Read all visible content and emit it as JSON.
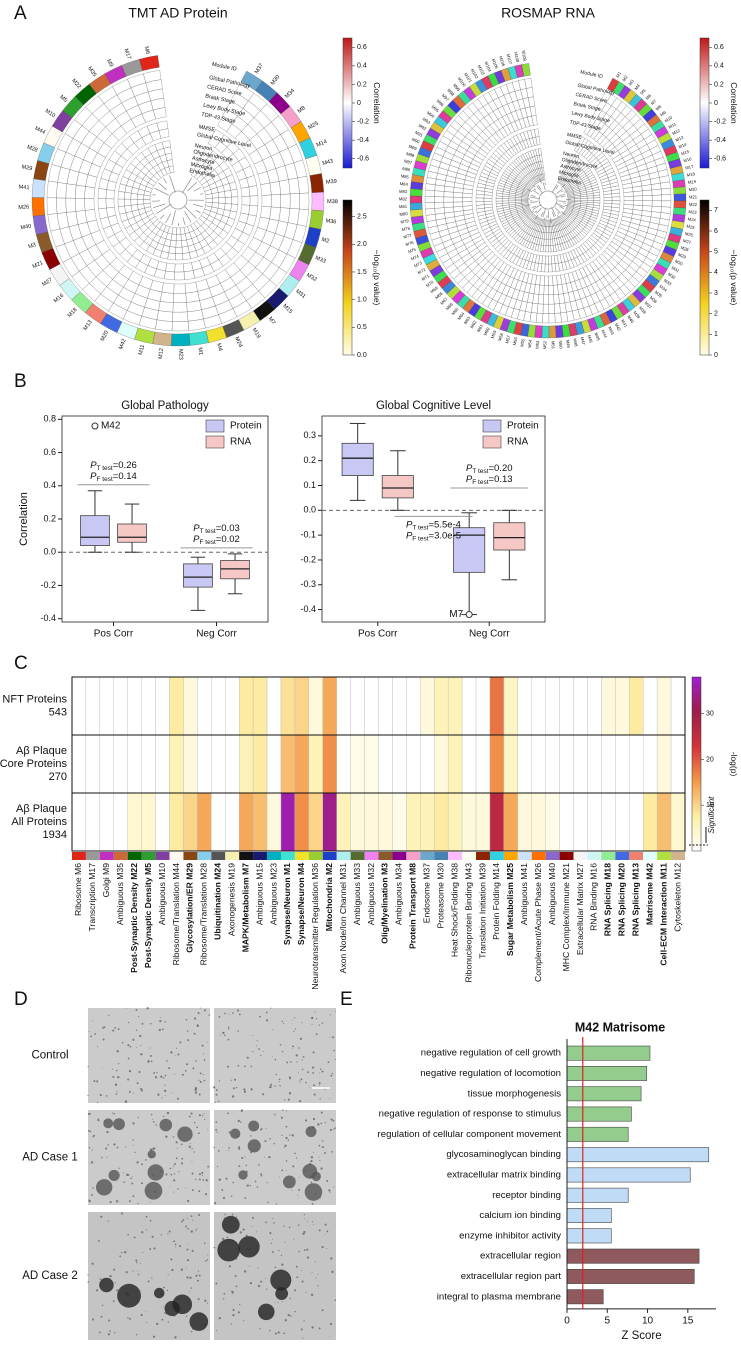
{
  "panel_labels": [
    "A",
    "B",
    "C",
    "D",
    "E"
  ],
  "chart_data": [
    {
      "type": "circular",
      "title": "TMT AD Protein",
      "tracks": [
        "Module ID",
        "Global Pathology",
        "CERAD Score",
        "Braak Stage",
        "Lewy Body Stage",
        "TDP-43 Stage",
        "MMSE",
        "Global Cognitive Level",
        "Neuron",
        "Oligodendrocyte",
        "Astrocyte",
        "Microglia",
        "Endothelia"
      ],
      "modules": [
        "M37",
        "M30",
        "M34",
        "M8",
        "M25",
        "M14",
        "M43",
        "M39",
        "M38",
        "M36",
        "M2",
        "M33",
        "M32",
        "M31",
        "M15",
        "M7",
        "M19",
        "M24",
        "M4",
        "M1",
        "M23",
        "M12",
        "M11",
        "M42",
        "M20",
        "M13",
        "M18",
        "M16",
        "M27",
        "M21",
        "M3",
        "M40",
        "M26",
        "M41",
        "M29",
        "M28",
        "M44",
        "M10",
        "M5",
        "M22",
        "M35",
        "M9",
        "M17",
        "M6"
      ],
      "colors": [
        "#6ca6cd",
        "#4682b4",
        "#8b008b",
        "#f5a0c8",
        "#ffa500",
        "#30d0e0",
        "#fffff0",
        "#8b2500",
        "#ffbbff",
        "#9acd32",
        "#1e40c8",
        "#556b2f",
        "#ee82ee",
        "#afeeee",
        "#191970",
        "#111111",
        "#f5f0b0",
        "#555555",
        "#f2e02a",
        "#40e0d0",
        "#00b0c0",
        "#d2b48c",
        "#b0e040",
        "#e0ffff",
        "#4169e1",
        "#f08070",
        "#90ee90",
        "#d0f5f5",
        "#f4f4f4",
        "#8b0000",
        "#8b5a2b",
        "#8968cd",
        "#ff7000",
        "#cae1ff",
        "#8b4513",
        "#87ceeb",
        "#fffaf0",
        "#8040a0",
        "#2e9e2e",
        "#006400",
        "#cd6839",
        "#c030c0",
        "#999999",
        "#e0261b"
      ],
      "colorbars": [
        {
          "label": "Correlation",
          "range": [
            -0.7,
            0.7
          ],
          "ticks": [
            0.6,
            0.4,
            0.2,
            0,
            -0.2,
            -0.4,
            -0.6
          ],
          "colors": [
            "#1a1ad0",
            "#ffffff",
            "#c01818"
          ]
        },
        {
          "label": "−log₁₀(p value)",
          "range": [
            0,
            2.8
          ],
          "ticks": [
            {
              "value": 0,
              "label": "0.0"
            },
            0.5,
            {
              "value": 1,
              "label": "1.0"
            },
            1.5,
            {
              "value": 2,
              "label": "2.0"
            },
            2.5
          ],
          "colors": [
            "#fffde8",
            "#f2d21c",
            "#c8461a",
            "#000000"
          ]
        }
      ]
    },
    {
      "type": "circular",
      "title": "ROSMAP RNA",
      "tracks": [
        "Module ID",
        "Global Pathology",
        "CERAD Score",
        "Braak Stage",
        "Lewy Body Stage",
        "TDP-43 Stage",
        "MMSE",
        "Global Cognitive Level",
        "Neuron",
        "Oligodendrocyte",
        "Astrocyte",
        "Microglia",
        "Endothelia"
      ],
      "modules": [
        "M1",
        "M2",
        "M3",
        "M4",
        "M5",
        "M6",
        "M7",
        "M8",
        "M9",
        "M10",
        "M11",
        "M12",
        "M13",
        "M14",
        "M15",
        "M16",
        "M17",
        "M18",
        "M19",
        "M20",
        "M21",
        "M22",
        "M23",
        "M24",
        "M25",
        "M26",
        "M27",
        "M28",
        "M29",
        "M30",
        "M31",
        "M32",
        "M33",
        "M34",
        "M35",
        "M36",
        "M37",
        "M38",
        "M39",
        "M40",
        "M41",
        "M42",
        "M43",
        "M44",
        "M45",
        "M46",
        "M47",
        "M48",
        "M49",
        "M50",
        "M51",
        "M52",
        "M53",
        "M54",
        "M55",
        "M56",
        "M57",
        "M58",
        "M59",
        "M60",
        "M61",
        "M62",
        "M63",
        "M64",
        "M65",
        "M66",
        "M67",
        "M68",
        "M69",
        "M70",
        "M71",
        "M72",
        "M73",
        "M74",
        "M75",
        "M76",
        "M77",
        "M78",
        "M79",
        "M80",
        "M81",
        "M82",
        "M83",
        "M84",
        "M85",
        "M86",
        "M87",
        "M88",
        "M89",
        "M90",
        "M91",
        "M92",
        "M93",
        "M94",
        "M95",
        "M96",
        "M97",
        "M98",
        "M99",
        "M100",
        "M101",
        "M102",
        "M103",
        "M104",
        "M105",
        "M106",
        "M107",
        "M108",
        "M109"
      ],
      "colorbars": [
        {
          "label": "Correlation",
          "range": [
            -0.7,
            0.7
          ],
          "ticks": [
            0.6,
            0.4,
            0.2,
            0,
            -0.2,
            -0.4,
            -0.6
          ],
          "colors": [
            "#1a1ad0",
            "#ffffff",
            "#c01818"
          ]
        },
        {
          "label": "−log₁₀(p value)",
          "range": [
            0,
            7.5
          ],
          "ticks": [
            7,
            6,
            5,
            4,
            3,
            2,
            1,
            0
          ],
          "colors": [
            "#fffde8",
            "#f2d21c",
            "#c8461a",
            "#000000"
          ]
        }
      ]
    },
    {
      "type": "box",
      "title": "Global Pathology",
      "ylabel": "Correlation",
      "categories": [
        "Pos Corr",
        "Neg Corr"
      ],
      "ylim": [
        -0.42,
        0.82
      ],
      "yticks": [
        -0.4,
        -0.2,
        {
          "value": 0,
          "label": "0.0"
        },
        0.2,
        0.4,
        0.6,
        0.8
      ],
      "reference_line": 0,
      "legend": "upper right",
      "series": [
        {
          "name": "Protein",
          "color": "#c9c7f3",
          "q1": [
            0.04,
            -0.21
          ],
          "median": [
            0.09,
            -0.15
          ],
          "q3": [
            0.22,
            -0.07
          ],
          "whislo": [
            0.0,
            -0.35
          ],
          "whishi": [
            0.37,
            -0.03
          ],
          "labeled_points": [
            {
              "label": "M42",
              "value": 0.76
            },
            null
          ]
        },
        {
          "name": "RNA",
          "color": "#f5c8c6",
          "q1": [
            0.06,
            -0.16
          ],
          "median": [
            0.09,
            -0.1
          ],
          "q3": [
            0.17,
            -0.05
          ],
          "whislo": [
            0.0,
            -0.25
          ],
          "whishi": [
            0.29,
            -0.01
          ],
          "labeled_points": [
            null,
            null
          ]
        }
      ],
      "p_values": [
        [
          {
            "p": "P",
            "sub": "T test",
            "text": "=0.26"
          },
          {
            "p": "P",
            "sub": "F test",
            "text": "=0.14"
          }
        ],
        [
          {
            "p": "P",
            "sub": "T test",
            "text": "=0.03"
          },
          {
            "p": "P",
            "sub": "F test",
            "text": "=0.02"
          }
        ]
      ]
    },
    {
      "type": "box",
      "title": "Global Cognitive Level",
      "categories": [
        "Pos Corr",
        "Neg Corr"
      ],
      "ylim": [
        -0.45,
        0.38
      ],
      "yticks": [
        -0.4,
        -0.3,
        -0.2,
        -0.1,
        {
          "value": 0,
          "label": "0.0"
        },
        0.1,
        0.2,
        0.3
      ],
      "reference_line": 0,
      "legend": "upper right",
      "series": [
        {
          "name": "Protein",
          "color": "#c9c7f3",
          "q1": [
            0.14,
            -0.25
          ],
          "median": [
            0.21,
            -0.1
          ],
          "q3": [
            0.27,
            -0.07
          ],
          "whislo": [
            0.04,
            -0.42
          ],
          "whishi": [
            0.35,
            -0.01
          ],
          "labeled_points": [
            null,
            {
              "label": "M7",
              "value": -0.42
            }
          ]
        },
        {
          "name": "RNA",
          "color": "#f5c8c6",
          "q1": [
            0.05,
            -0.16
          ],
          "median": [
            0.09,
            -0.11
          ],
          "q3": [
            0.14,
            -0.05
          ],
          "whislo": [
            0.0,
            -0.28
          ],
          "whishi": [
            0.24,
            0.0
          ],
          "labeled_points": [
            null,
            null
          ]
        }
      ],
      "p_values": [
        [
          {
            "p": "P",
            "sub": "T test",
            "text": "=0.20"
          },
          {
            "p": "P",
            "sub": "F test",
            "text": "=0.13"
          }
        ],
        [
          {
            "p": "P",
            "sub": "T test",
            "text": "=5.5e-4"
          },
          {
            "p": "P",
            "sub": "F test",
            "text": "=3.0e-5"
          }
        ]
      ]
    },
    {
      "type": "heatmap",
      "rows": [
        [
          "NFT Proteins",
          "543"
        ],
        [
          "Aβ Plaque",
          "Core Proteins",
          "270"
        ],
        [
          "Aβ Plaque",
          "All Proteins",
          "1934"
        ]
      ],
      "categories": [
        "Ribosome M6",
        "Transcription M17",
        "Golgi M9",
        "Ambiguous M35",
        "Post-Synaptic Density M22",
        "Post-Synaptic Density M5",
        "Ambiguous M10",
        "Ribosome/Translation M44",
        "Glycosylation/ER M29",
        "Ribosome/Translation M28",
        "Ubiquitination M24",
        "Axonogenesis M19",
        "MAPK/Metabolism M7",
        "Ambiguous M15",
        "Ambiguous M23",
        "Synapse/Neuron M1",
        "Synapse/Neuron M4",
        "Neurotransmitter Regulation M36",
        "Mitochondria M2",
        "Axon Node/Ion Channel M31",
        "Ambiguous M33",
        "Ambiguous M32",
        "Olig/Myelination M3",
        "Ambiguous M34",
        "Protein Transport M8",
        "Endosome M37",
        "Proteasome M30",
        "Heat Shock/Folding M38",
        "Ribonucleoprotein Binding M43",
        "Translation Initiation M39",
        "Protein Folding M14",
        "Sugar Metabolism M25",
        "Ambiguous M41",
        "Complement/Acute Phase M26",
        "Ambiguous M40",
        "MHC Complex/Immune M21",
        "Extracellular Matrix M27",
        "RNA Binding M16",
        "RNA Splicing M18",
        "RNA Splicing M20",
        "RNA Splicing M13",
        "Matrisome M42",
        "Cell-ECM Interaction M11",
        "Cytoskeleton M12"
      ],
      "label_styles": [
        "normal",
        "normal",
        "normal",
        "normal",
        "red",
        "red",
        "normal",
        "normal",
        "bold",
        "normal",
        "bold",
        "normal",
        "red",
        "normal",
        "normal",
        "bold",
        "bold",
        "normal",
        "bold",
        "normal",
        "normal",
        "normal",
        "bold",
        "normal",
        "bold",
        "normal",
        "normal",
        "normal",
        "normal",
        "normal",
        "normal",
        "bold",
        "normal",
        "normal",
        "normal",
        "normal",
        "normal",
        "normal",
        "bold",
        "bold",
        "bold",
        "red",
        "red",
        "normal"
      ],
      "column_colors": [
        "#e0261b",
        "#999999",
        "#c030c0",
        "#cd6839",
        "#006400",
        "#2e9e2e",
        "#8040a0",
        "#fffaf0",
        "#8b4513",
        "#87ceeb",
        "#555555",
        "#f5f0b0",
        "#111111",
        "#191970",
        "#00b0c0",
        "#40e0d0",
        "#f2e02a",
        "#9acd32",
        "#1e40c8",
        "#afeeee",
        "#556b2f",
        "#ee82ee",
        "#8b5a2b",
        "#8b008b",
        "#f5a0c8",
        "#6ca6cd",
        "#4682b4",
        "#ffbbff",
        "#fffff0",
        "#8b2500",
        "#30d0e0",
        "#ffa500",
        "#cae1ff",
        "#ff7000",
        "#8968cd",
        "#8b0000",
        "#f4f4f4",
        "#d0f5f5",
        "#90ee90",
        "#4169e1",
        "#f08070",
        "#e0ffff",
        "#b0e040",
        "#d2b48c"
      ],
      "values": [
        [
          0,
          0,
          0,
          0,
          0,
          0,
          0,
          8,
          3,
          0,
          0,
          0,
          8,
          8,
          0,
          9,
          10,
          3,
          14,
          0,
          0,
          0,
          0,
          0,
          0,
          3,
          6,
          6,
          0,
          0,
          18,
          5,
          0,
          0,
          0,
          0,
          0,
          0,
          3,
          3,
          8,
          0,
          3,
          0
        ],
        [
          0,
          0,
          0,
          0,
          0,
          0,
          0,
          6,
          3,
          0,
          0,
          0,
          6,
          8,
          0,
          12,
          14,
          6,
          16,
          0,
          2,
          2,
          0,
          0,
          0,
          0,
          3,
          6,
          0,
          0,
          16,
          5,
          0,
          0,
          0,
          0,
          0,
          0,
          0,
          0,
          0,
          0,
          3,
          0
        ],
        [
          0,
          0,
          0,
          0,
          4,
          4,
          0,
          8,
          10,
          14,
          0,
          0,
          14,
          12,
          3,
          36,
          16,
          10,
          34,
          6,
          3,
          3,
          3,
          2,
          6,
          6,
          8,
          6,
          3,
          3,
          26,
          14,
          3,
          3,
          2,
          0,
          0,
          0,
          0,
          0,
          0,
          8,
          12,
          4
        ]
      ],
      "colorbar": {
        "label": "-log(p)",
        "range": [
          0,
          38
        ],
        "ticks": [
          10,
          20,
          30
        ],
        "colors": [
          "#ffffff",
          "#fdf0a6",
          "#f39a4a",
          "#d2333a",
          "#9c1c4a",
          "#a01fd0"
        ]
      },
      "significance": {
        "label": "Significant",
        "threshold": 1.3
      }
    },
    {
      "type": "barh",
      "title": "M42 Matrisome",
      "xlabel": "Z Score",
      "categories": [
        "negative regulation of cell growth",
        "negative regulation of locomotion",
        "tissue morphogenesis",
        "negative regulation of response to stimulus",
        "regulation of cellular component movement",
        "glycosaminoglycan binding",
        "extracellular matrix binding",
        "receptor binding",
        "calcium ion binding",
        "enzyme inhibitor activity",
        "extracellular region",
        "extracellular region part",
        "integral to plasma membrane"
      ],
      "values": [
        10.3,
        9.9,
        9.2,
        8.0,
        7.6,
        17.6,
        15.3,
        7.6,
        5.5,
        5.5,
        16.4,
        15.8,
        4.5
      ],
      "colors": [
        "#93cc8c",
        "#93cc8c",
        "#93cc8c",
        "#93cc8c",
        "#93cc8c",
        "#c0dbf5",
        "#c0dbf5",
        "#c0dbf5",
        "#c0dbf5",
        "#c0dbf5",
        "#8e5a5e",
        "#8e5a5e",
        "#8e5a5e"
      ],
      "xlim": [
        0,
        18.5
      ],
      "xticks": [
        0,
        5,
        10,
        15
      ],
      "reference_line": 1.96,
      "reference_color": "#e02020"
    }
  ],
  "images": {
    "rows": [
      "Control",
      "AD Case 1",
      "AD Case 2"
    ]
  }
}
